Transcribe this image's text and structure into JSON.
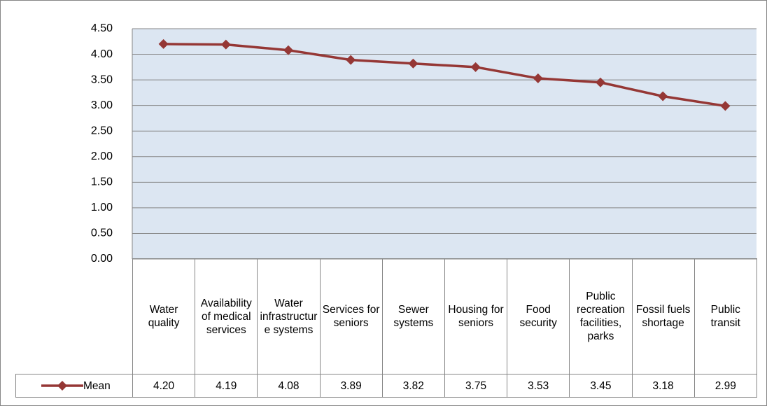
{
  "chart_data": {
    "type": "line",
    "categories": [
      "Water quality",
      "Availability of medical services",
      "Water infrastructure systems",
      "Services for seniors",
      "Sewer systems",
      "Housing for seniors",
      "Food security",
      "Public recreation facilities, parks",
      "Fossil fuels shortage",
      "Public transit"
    ],
    "series": [
      {
        "name": "Mean",
        "color": "#953735",
        "values": [
          4.2,
          4.19,
          4.08,
          3.89,
          3.82,
          3.75,
          3.53,
          3.45,
          3.18,
          2.99
        ],
        "value_labels": [
          "4.20",
          "4.19",
          "4.08",
          "3.89",
          "3.82",
          "3.75",
          "3.53",
          "3.45",
          "3.18",
          "2.99"
        ]
      }
    ],
    "ylim": [
      0,
      4.5
    ],
    "yticks": [
      {
        "value": 0,
        "label": "0.00"
      },
      {
        "value": 0.5,
        "label": "0.50"
      },
      {
        "value": 1,
        "label": "1.00"
      },
      {
        "value": 1.5,
        "label": "1.50"
      },
      {
        "value": 2,
        "label": "2.00"
      },
      {
        "value": 2.5,
        "label": "2.50"
      },
      {
        "value": 3,
        "label": "3.00"
      },
      {
        "value": 3.5,
        "label": "3.50"
      },
      {
        "value": 4,
        "label": "4.00"
      },
      {
        "value": 4.5,
        "label": "4.50"
      }
    ],
    "grid": true,
    "plot_background": "#dce6f2"
  }
}
